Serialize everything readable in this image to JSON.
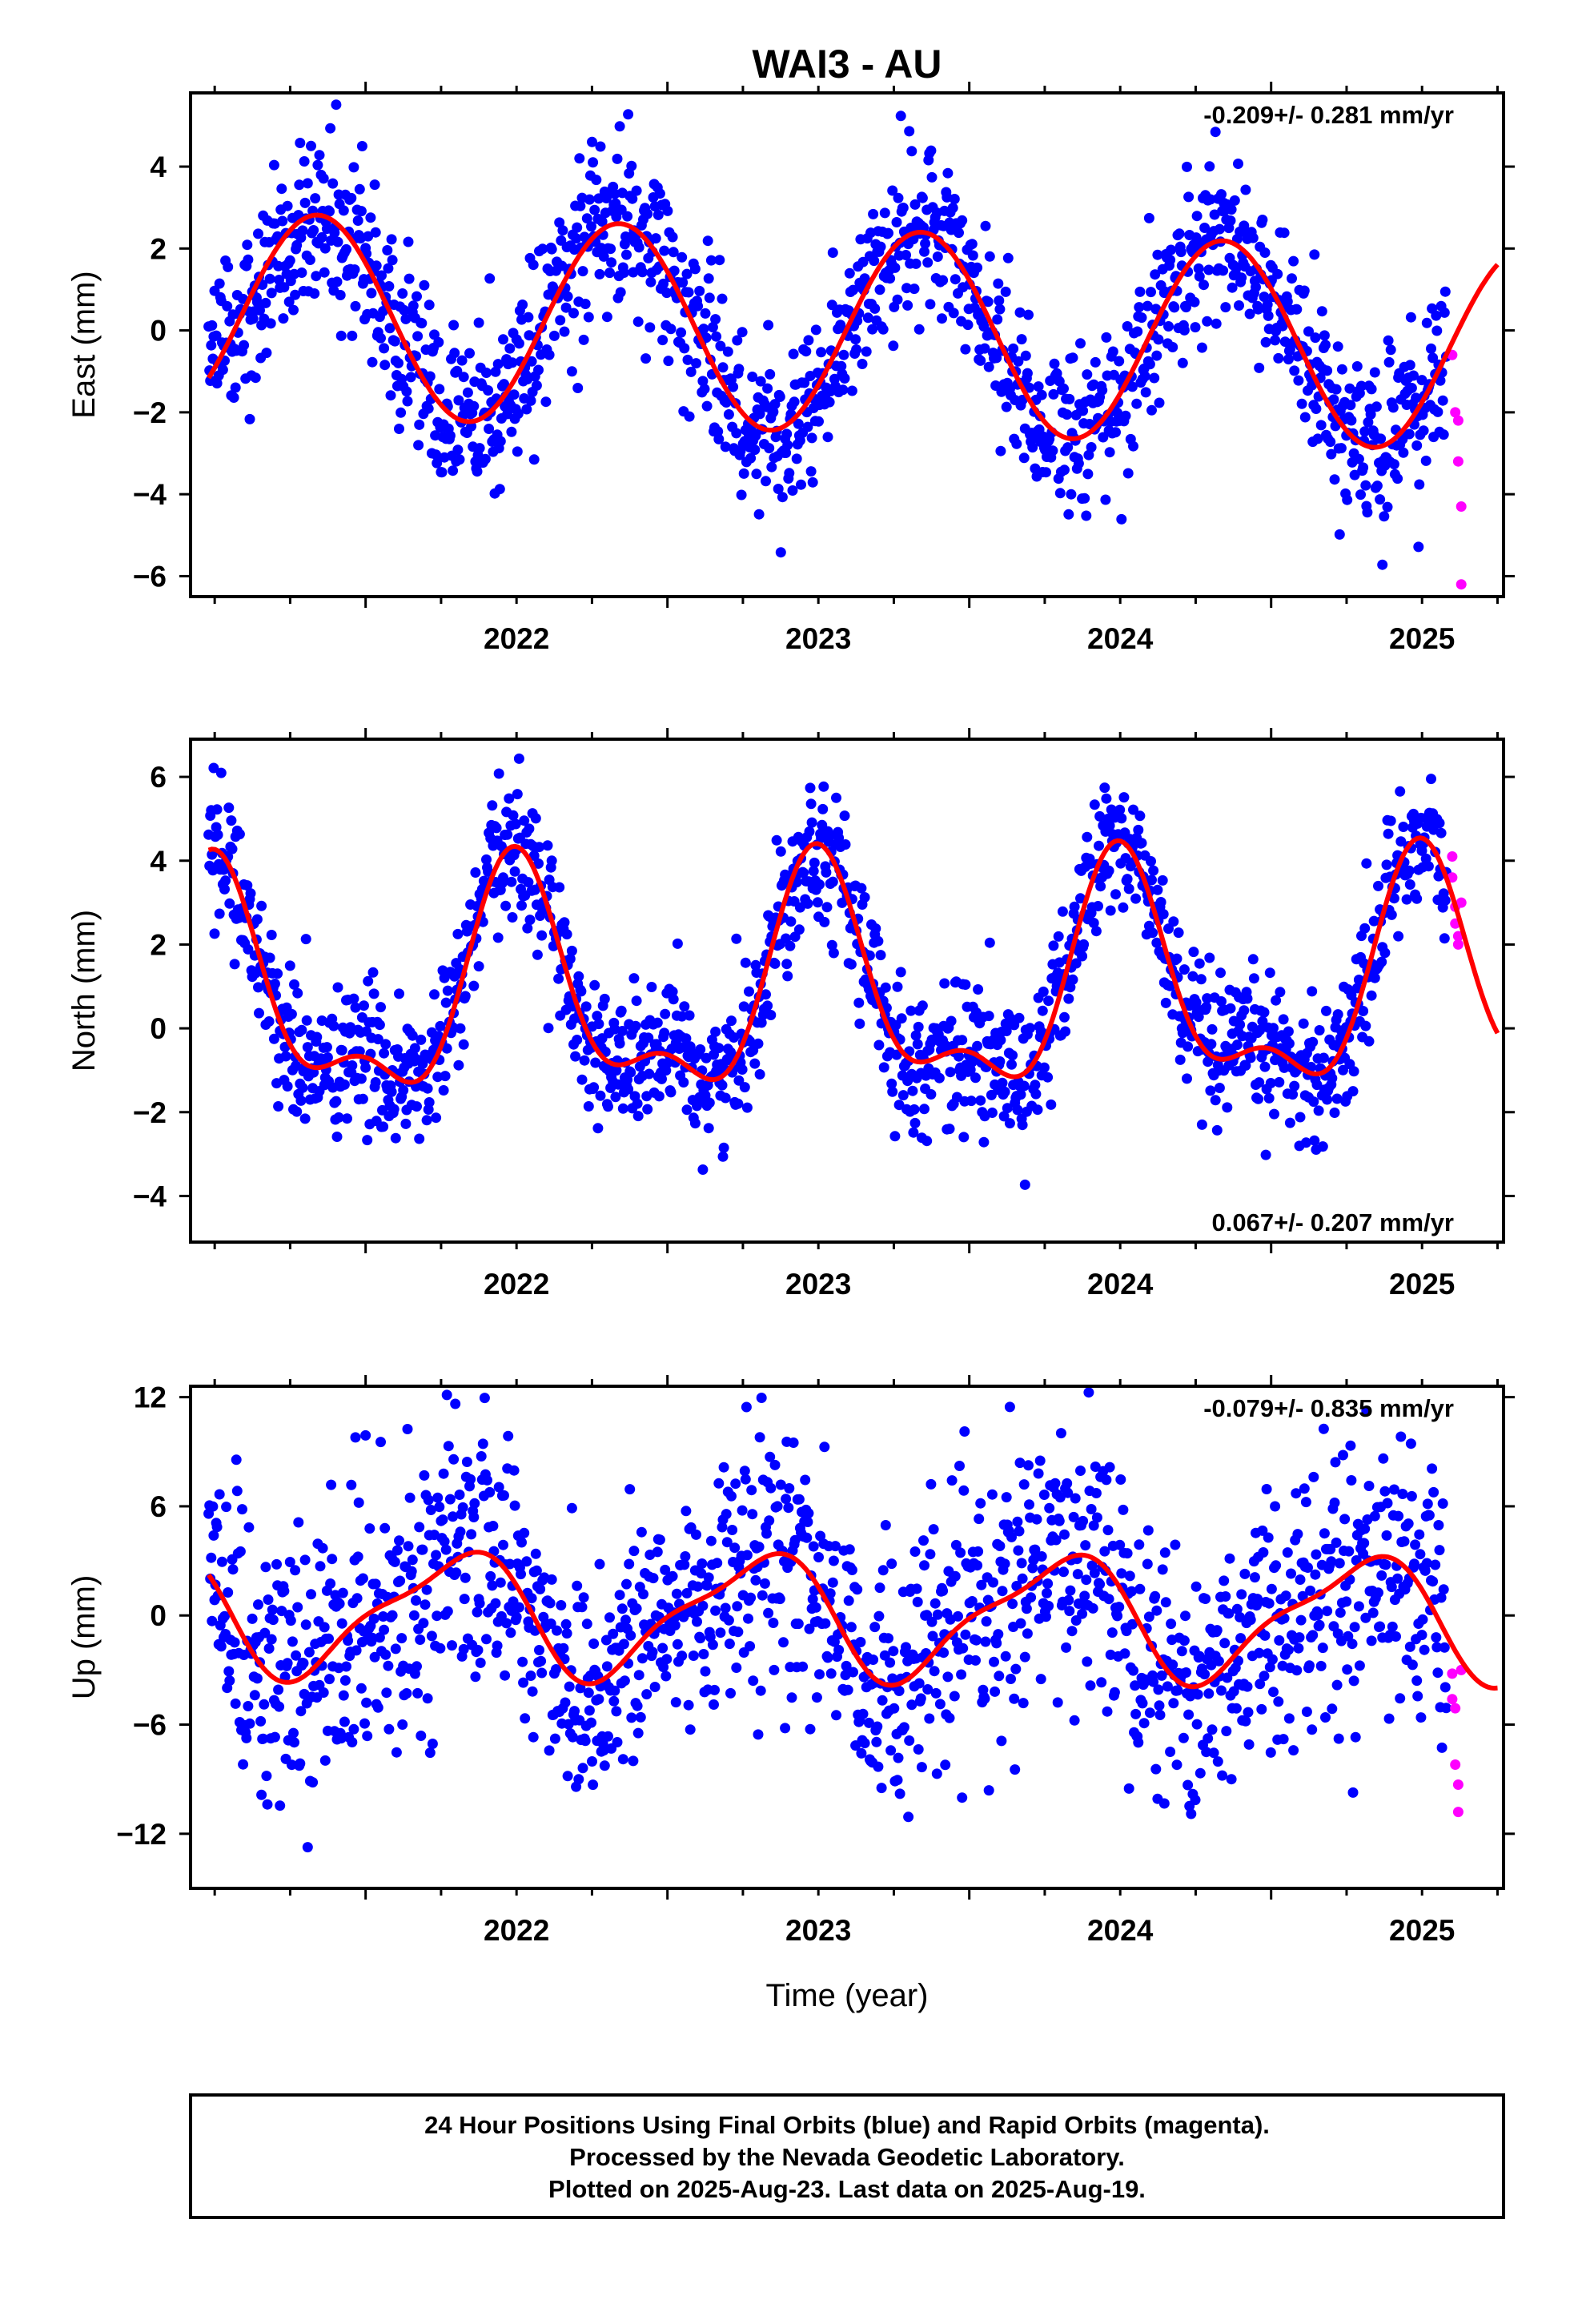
{
  "title": "WAI3 - AU",
  "footer": {
    "line1": "24 Hour Positions Using Final Orbits (blue) and Rapid Orbits (magenta).",
    "line2": "Processed by the Nevada Geodetic Laboratory.",
    "line3": "Plotted on 2025-Aug-23. Last data on 2025-Aug-19."
  },
  "colors": {
    "final": "#0000ff",
    "rapid": "#ff00ff",
    "model": "#ff0000",
    "frame": "#000000"
  },
  "chart_data": [
    {
      "type": "scatter",
      "component": "east",
      "ylabel": "East (mm)",
      "xlabel": "",
      "rate_text": "-0.209+/- 0.281 mm/yr",
      "rate_position": "top-right",
      "xlim": [
        2021.42,
        2025.77
      ],
      "ylim": [
        -6.5,
        5.8
      ],
      "xticks": [
        2022,
        2023,
        2024,
        2025
      ],
      "yticks": [
        -6,
        -4,
        -2,
        0,
        2,
        4
      ],
      "model": {
        "offset": 0.0,
        "trend": -0.209,
        "annual_cos": -2.3,
        "annual_sin": 0.9,
        "semiannual_cos": 0.0,
        "semiannual_sin": 0.0,
        "annual_phase_ref": 2021.4
      },
      "final_orbits": {
        "start": 2021.48,
        "end": 2025.58,
        "scatter_mm": 1.05,
        "per_year": 360
      },
      "rapid_orbits": {
        "x": [
          2025.6,
          2025.61,
          2025.62,
          2025.62,
          2025.63,
          2025.63
        ],
        "y": [
          -0.6,
          -2.0,
          -2.2,
          -3.2,
          -4.3,
          -6.2
        ]
      },
      "grid": false
    },
    {
      "type": "scatter",
      "component": "north",
      "ylabel": "North (mm)",
      "xlabel": "",
      "rate_text": "0.067+/- 0.207 mm/yr",
      "rate_position": "bottom-right",
      "xlim": [
        2021.42,
        2025.77
      ],
      "ylim": [
        -5.1,
        6.9
      ],
      "xticks": [
        2022,
        2023,
        2024,
        2025
      ],
      "yticks": [
        -4,
        -2,
        0,
        2,
        4,
        6
      ],
      "model": {
        "offset": 0.8,
        "trend": 0.067,
        "annual_cos": 2.0,
        "annual_sin": 1.5,
        "semiannual_cos": 0.5,
        "semiannual_sin": 1.0,
        "annual_phase_ref": 2021.4
      },
      "final_orbits": {
        "start": 2021.48,
        "end": 2025.58,
        "scatter_mm": 0.85,
        "per_year": 360
      },
      "rapid_orbits": {
        "x": [
          2025.6,
          2025.6,
          2025.61,
          2025.61,
          2025.62,
          2025.62,
          2025.63
        ],
        "y": [
          4.1,
          3.6,
          2.9,
          2.5,
          2.2,
          2.0,
          3.0
        ]
      },
      "grid": false
    },
    {
      "type": "scatter",
      "component": "up",
      "ylabel": "Up (mm)",
      "xlabel": "Time (year)",
      "rate_text": "-0.079+/- 0.835 mm/yr",
      "rate_position": "top-right",
      "xlim": [
        2021.42,
        2025.77
      ],
      "ylim": [
        -15.0,
        12.6
      ],
      "xticks": [
        2022,
        2023,
        2024,
        2025
      ],
      "yticks": [
        -12,
        -6,
        0,
        6,
        12
      ],
      "model": {
        "offset": 0.0,
        "trend": -0.079,
        "annual_cos": 2.5,
        "annual_sin": -2.0,
        "semiannual_cos": 0.8,
        "semiannual_sin": 0.5,
        "annual_phase_ref": 2021.4
      },
      "final_orbits": {
        "start": 2021.48,
        "end": 2025.58,
        "scatter_mm": 3.6,
        "per_year": 360
      },
      "rapid_orbits": {
        "x": [
          2025.6,
          2025.6,
          2025.61,
          2025.61,
          2025.62,
          2025.62,
          2025.63
        ],
        "y": [
          -3.2,
          -4.6,
          -5.1,
          -8.2,
          -9.3,
          -10.8,
          -3.0
        ]
      },
      "grid": false
    }
  ]
}
